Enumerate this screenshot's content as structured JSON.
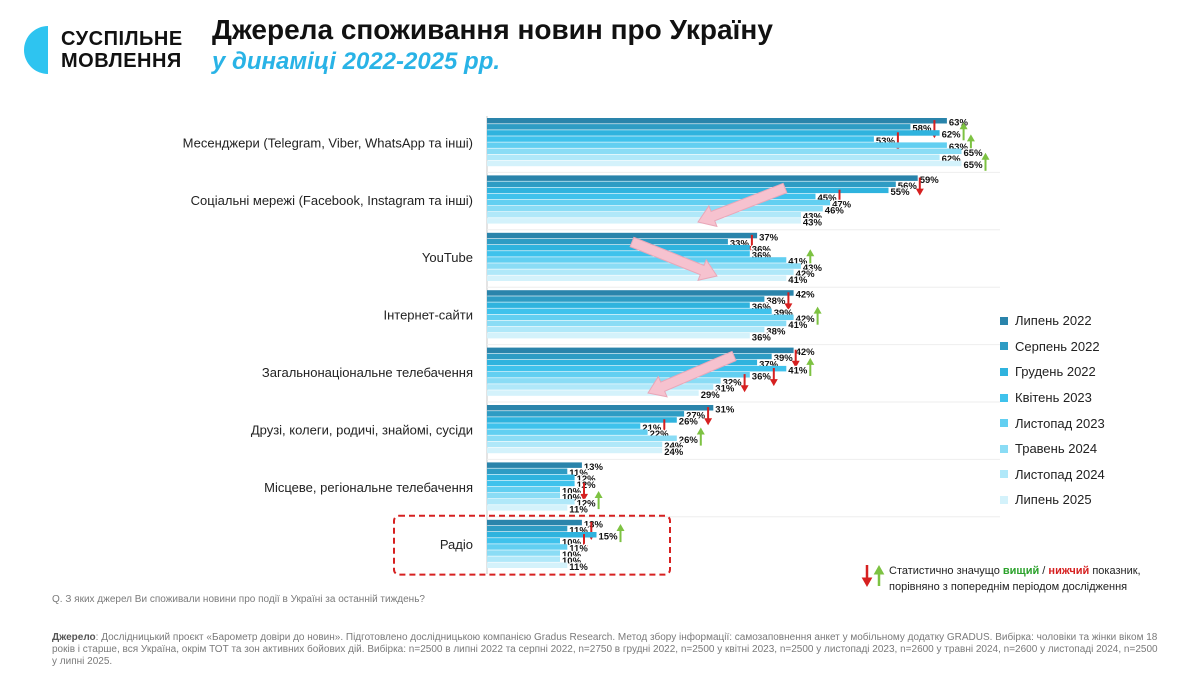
{
  "brand": {
    "line1": "СУСПІЛЬНЕ",
    "line2": "МОВЛЕННЯ",
    "logo_color": "#2ec4f0"
  },
  "header": {
    "title": "Джерела споживання новин про Україну",
    "subtitle": "у динаміці 2022-2025 рр."
  },
  "colors": {
    "series": [
      "#2a84ab",
      "#2e9cc4",
      "#2fb3de",
      "#3fc2ec",
      "#62cff1",
      "#8adcf5",
      "#b0e8f9",
      "#d4f2fb"
    ],
    "up_arrow": "#7dc242",
    "down_arrow": "#d62020",
    "highlight_box": "#d62020",
    "trend_arrow": "#f6c2cf"
  },
  "chart_data": {
    "type": "bar",
    "orientation": "horizontal",
    "unit": "%",
    "categories": [
      "Месенджери (Telegram, Viber, WhatsApp та інші)",
      "Соціальні мережі (Facebook, Instagram та інші)",
      "YouTube",
      "Інтернет-сайти",
      "Загальнонаціональне телебачення",
      "Друзі, колеги, родичі, знайомі, сусіди",
      "Місцеве, регіональне телебачення",
      "Радіо"
    ],
    "series": [
      {
        "name": "Липень 2022",
        "values": [
          63,
          59,
          37,
          42,
          42,
          31,
          13,
          13
        ],
        "significance": [
          "",
          "",
          "",
          "",
          "",
          "",
          "",
          ""
        ]
      },
      {
        "name": "Серпень 2022",
        "values": [
          58,
          56,
          33,
          38,
          39,
          27,
          11,
          11
        ],
        "significance": [
          "down",
          "down",
          "down",
          "down",
          "down",
          "down",
          "",
          "down"
        ]
      },
      {
        "name": "Грудень 2022",
        "values": [
          62,
          55,
          36,
          36,
          37,
          26,
          12,
          15
        ],
        "significance": [
          "up",
          "",
          "",
          "",
          "",
          "",
          "",
          "up"
        ]
      },
      {
        "name": "Квітень 2023",
        "values": [
          53,
          45,
          36,
          39,
          41,
          21,
          12,
          10
        ],
        "significance": [
          "down",
          "down",
          "",
          "",
          "up",
          "down",
          "",
          "down"
        ]
      },
      {
        "name": "Листопад 2023",
        "values": [
          63,
          47,
          41,
          42,
          36,
          22,
          10,
          11
        ],
        "significance": [
          "up",
          "",
          "up",
          "up",
          "down",
          "",
          "down",
          ""
        ]
      },
      {
        "name": "Травень 2024",
        "values": [
          65,
          46,
          43,
          41,
          32,
          26,
          10,
          10
        ],
        "significance": [
          "",
          "",
          "",
          "",
          "down",
          "up",
          "",
          ""
        ]
      },
      {
        "name": "Листопад 2024",
        "values": [
          62,
          43,
          42,
          38,
          31,
          24,
          12,
          10
        ],
        "significance": [
          "",
          "",
          "",
          "",
          "",
          "",
          "up",
          ""
        ]
      },
      {
        "name": "Липень 2025",
        "values": [
          65,
          43,
          41,
          36,
          29,
          24,
          11,
          11
        ],
        "significance": [
          "up",
          "",
          "",
          "",
          "",
          "",
          "",
          ""
        ]
      }
    ],
    "highlighted_category": "Радіо",
    "trend_arrows": [
      "Соціальні мережі (Facebook, Instagram та інші)",
      "YouTube",
      "Загальнонаціональне телебачення"
    ]
  },
  "significance_note": {
    "prefix": "Статистично значущо ",
    "higher": "вищий",
    "separator": " / ",
    "lower": "нижчий",
    "suffix": " показник,",
    "line2": "порівняно з попереднім періодом дослідження"
  },
  "question": "Q. З яких джерел Ви споживали новини про події в Україні за останній тиждень?",
  "source": {
    "label": "Джерело",
    "text": ": Дослідницький проєкт «Барометр довіри до новин». Підготовлено дослідницькою компанією Gradus Research. Метод збору інформації: самозаповнення анкет у мобільному додатку GRADUS. Вибірка: чоловіки та жінки віком 18 років і старше, вся Україна, окрім ТОТ та зон активних бойових дій. Вибірка: n=2500 в липні 2022 та серпні 2022, n=2750 в грудні 2022, n=2500 у квітні 2023, n=2500 у листопаді 2023, n=2600 у травні 2024, n=2600 у листопаді 2024, n=2500 у липні 2025."
  }
}
